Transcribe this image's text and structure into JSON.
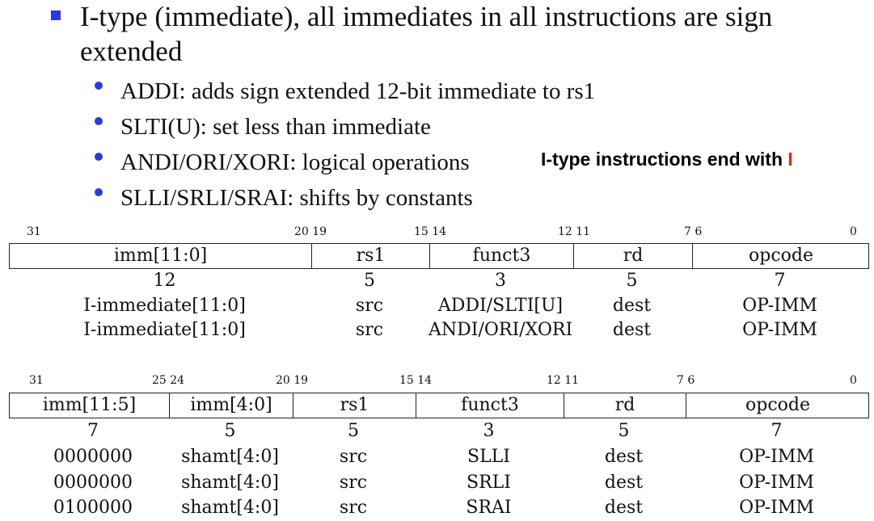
{
  "heading": {
    "line1": "I-type (immediate), all immediates in all instructions are sign",
    "line2": "extended"
  },
  "bullets": [
    "ADDI: adds sign extended 12-bit immediate to rs1",
    "SLTI(U): set less than immediate",
    "ANDI/ORI/XORI: logical operations",
    "SLLI/SRLI/SRAI: shifts by constants"
  ],
  "note": {
    "text": "I-type instructions end with ",
    "highlight": "I",
    "highlight_color": "#e8241d"
  },
  "bullet_color": "#2a3bd6",
  "table1": {
    "bits": [
      "31",
      "20 19",
      "15 14",
      "12 11",
      "7 6",
      "0"
    ],
    "fields": [
      "imm[11:0]",
      "rs1",
      "funct3",
      "rd",
      "opcode"
    ],
    "widths": [
      "12",
      "5",
      "3",
      "5",
      "7"
    ],
    "rows": [
      [
        "I-immediate[11:0]",
        "src",
        "ADDI/SLTI[U]",
        "dest",
        "OP-IMM"
      ],
      [
        "I-immediate[11:0]",
        "src",
        "ANDI/ORI/XORI",
        "dest",
        "OP-IMM"
      ]
    ]
  },
  "table2": {
    "bits": [
      "31",
      "25 24",
      "20 19",
      "15 14",
      "12 11",
      "7 6",
      "0"
    ],
    "fields": [
      "imm[11:5]",
      "imm[4:0]",
      "rs1",
      "funct3",
      "rd",
      "opcode"
    ],
    "widths": [
      "7",
      "5",
      "5",
      "3",
      "5",
      "7"
    ],
    "rows": [
      [
        "0000000",
        "shamt[4:0]",
        "src",
        "SLLI",
        "dest",
        "OP-IMM"
      ],
      [
        "0000000",
        "shamt[4:0]",
        "src",
        "SRLI",
        "dest",
        "OP-IMM"
      ],
      [
        "0100000",
        "shamt[4:0]",
        "src",
        "SRAI",
        "dest",
        "OP-IMM"
      ]
    ]
  }
}
